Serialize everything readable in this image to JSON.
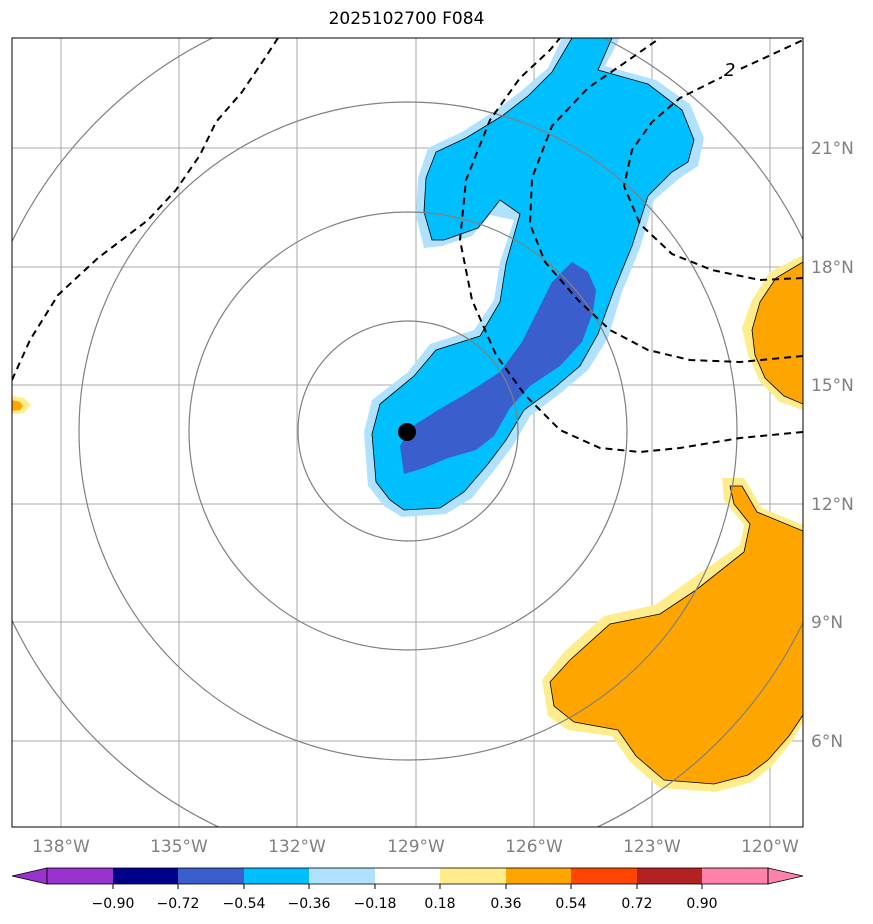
{
  "title": "2025102700 F084",
  "map": {
    "lon_labels": [
      "138°W",
      "135°W",
      "132°W",
      "129°W",
      "126°W",
      "123°W",
      "120°W"
    ],
    "lat_labels": [
      "21°N",
      "18°N",
      "15°N",
      "12°N",
      "9°N",
      "6°N"
    ],
    "contour_label": "2",
    "storm_center": {
      "lon": -129.2,
      "lat": 13.8
    }
  },
  "colorbar": {
    "colors": [
      "#9a32cd",
      "#00008b",
      "#3a5fcd",
      "#00bfff",
      "#b0e2ff",
      "#ffffff",
      "#ffec8b",
      "#ffa500",
      "#ff4500",
      "#b22222",
      "#ff82ab"
    ],
    "labels": [
      "−0.90",
      "−0.72",
      "−0.54",
      "−0.36",
      "−0.18",
      "0.18",
      "0.36",
      "0.54",
      "0.72",
      "0.90"
    ],
    "extend": "both"
  },
  "colors": {
    "grid": "#a9a9a9",
    "range_rings": "#808080",
    "negative_strong": "#3a5fcd",
    "negative": "#00bfff",
    "negative_light": "#b0e2ff",
    "positive_light": "#ffec8b",
    "positive": "#ffa500"
  }
}
